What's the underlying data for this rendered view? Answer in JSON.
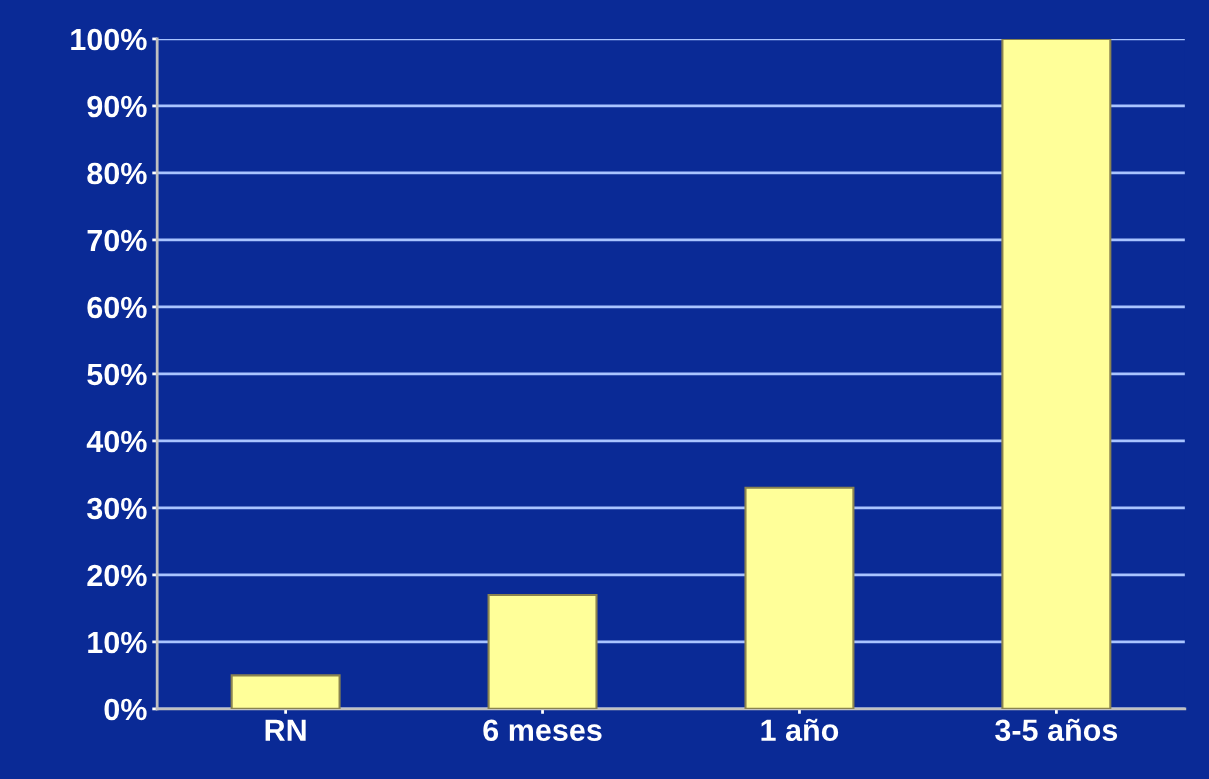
{
  "chart_data": {
    "type": "bar",
    "categories": [
      "RN",
      "6 meses",
      "1 año",
      "3-5 años"
    ],
    "values": [
      5,
      17,
      33,
      100
    ],
    "color": "#ffff99",
    "ylim": [
      0,
      100
    ],
    "yticks": [
      {
        "value": 0,
        "label": "0%"
      },
      {
        "value": 10,
        "label": "10%"
      },
      {
        "value": 20,
        "label": "20%"
      },
      {
        "value": 30,
        "label": "30%"
      },
      {
        "value": 40,
        "label": "40%"
      },
      {
        "value": 50,
        "label": "50%"
      },
      {
        "value": 60,
        "label": "60%"
      },
      {
        "value": 70,
        "label": "70%"
      },
      {
        "value": 80,
        "label": "80%"
      },
      {
        "value": 90,
        "label": "90%"
      },
      {
        "value": 100,
        "label": "100%"
      }
    ],
    "grid": "y"
  }
}
